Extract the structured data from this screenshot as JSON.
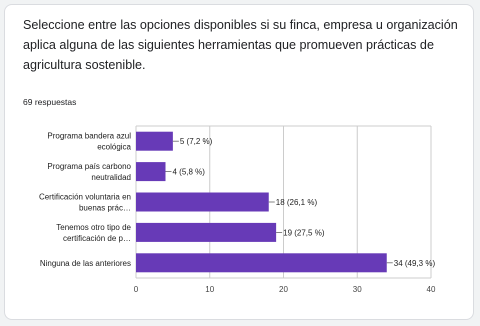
{
  "question": "Seleccione entre las opciones disponibles si su finca, empresa u organización aplica alguna de las siguientes herramientas que promueven prácticas de agricultura sostenible.",
  "responses": "69 respuestas",
  "colors": {
    "bar": "#673ab7",
    "grid": "#cccccc",
    "card_border": "#dadce0"
  },
  "chart_data": {
    "type": "bar",
    "orientation": "horizontal",
    "categories": [
      [
        "Programa bandera azul",
        "ecológica"
      ],
      [
        "Programa país carbono",
        "neutralidad"
      ],
      [
        "Certificación voluntaria en",
        "buenas prác…"
      ],
      [
        "Tenemos otro tipo de",
        "certificación de p…"
      ],
      [
        "Ninguna de las anteriores"
      ]
    ],
    "values": [
      5,
      4,
      18,
      19,
      34
    ],
    "data_labels": [
      "5 (7,2 %)",
      "4 (5,8 %)",
      "18 (26,1 %)",
      "19 (27,5 %)",
      "34 (49,3 %)"
    ],
    "xlim": [
      0,
      40
    ],
    "xticks": [
      "0",
      "10",
      "20",
      "30",
      "40"
    ],
    "grid": true
  }
}
